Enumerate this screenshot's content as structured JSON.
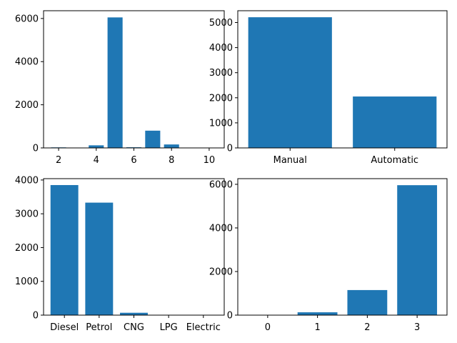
{
  "colors": {
    "bar": "#1f77b4",
    "axis": "#000000",
    "background": "#ffffff"
  },
  "chart_data": [
    {
      "type": "bar",
      "title": "",
      "xlabel": "",
      "ylabel": "",
      "x": [
        2,
        3,
        4,
        5,
        6,
        7,
        8
      ],
      "values": [
        25,
        10,
        120,
        6050,
        30,
        800,
        160
      ],
      "xlim": [
        1.2,
        10.8
      ],
      "ylim": [
        0,
        6360
      ],
      "bar_width": 0.8,
      "xticks": [
        2,
        4,
        6,
        8,
        10
      ],
      "xtick_labels": [
        "2",
        "4",
        "6",
        "8",
        "10"
      ],
      "yticks": [
        0,
        2000,
        4000,
        6000
      ],
      "ytick_labels": [
        "0",
        "2000",
        "4000",
        "6000"
      ],
      "grid": false
    },
    {
      "type": "bar",
      "title": "",
      "xlabel": "",
      "ylabel": "",
      "categories": [
        "Manual",
        "Automatic"
      ],
      "values": [
        5210,
        2050
      ],
      "xlim": [
        -0.5,
        1.5
      ],
      "ylim": [
        0,
        5470
      ],
      "bar_width": 0.8,
      "yticks": [
        0,
        1000,
        2000,
        3000,
        4000,
        5000
      ],
      "ytick_labels": [
        "0",
        "1000",
        "2000",
        "3000",
        "4000",
        "5000"
      ],
      "grid": false
    },
    {
      "type": "bar",
      "title": "",
      "xlabel": "",
      "ylabel": "",
      "categories": [
        "Diesel",
        "Petrol",
        "CNG",
        "LPG",
        "Electric"
      ],
      "values": [
        3850,
        3330,
        70,
        5,
        2
      ],
      "xlim": [
        -0.6,
        4.6
      ],
      "ylim": [
        0,
        4040
      ],
      "bar_width": 0.8,
      "yticks": [
        0,
        1000,
        2000,
        3000,
        4000
      ],
      "ytick_labels": [
        "0",
        "1000",
        "2000",
        "3000",
        "4000"
      ],
      "grid": false
    },
    {
      "type": "bar",
      "title": "",
      "xlabel": "",
      "ylabel": "",
      "categories": [
        "0",
        "1",
        "2",
        "3"
      ],
      "values": [
        10,
        130,
        1150,
        5960
      ],
      "xlim": [
        -0.6,
        3.6
      ],
      "ylim": [
        0,
        6260
      ],
      "bar_width": 0.8,
      "yticks": [
        0,
        2000,
        4000,
        6000
      ],
      "ytick_labels": [
        "0",
        "2000",
        "4000",
        "6000"
      ],
      "grid": false
    }
  ]
}
